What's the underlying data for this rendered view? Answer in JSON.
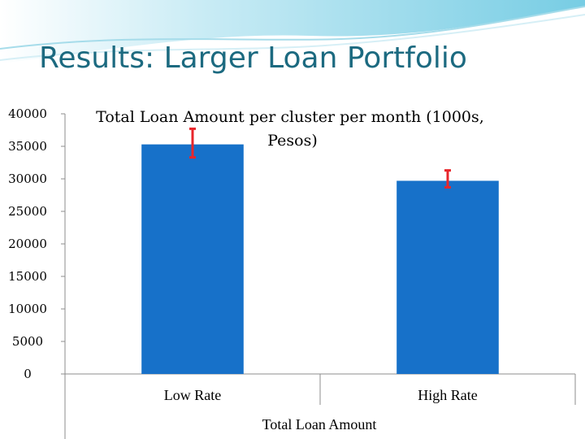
{
  "slide": {
    "title": "Results: Larger Loan Portfolio",
    "colors": {
      "title": "#1c6a80",
      "header_wave": "#7fd0e6",
      "bar": "#1771c9",
      "error_bar": "#e8262b"
    }
  },
  "chart_data": {
    "type": "bar",
    "title_lines": [
      "Total Loan Amount per cluster per month (1000s,",
      "Pesos)"
    ],
    "categories": [
      "Low Rate",
      "High Rate"
    ],
    "series": [
      {
        "values": [
          35300,
          29700
        ],
        "error_low": [
          33300,
          28700
        ],
        "error_high": [
          37700,
          31300
        ]
      }
    ],
    "xlabel": "Total Loan Amount",
    "ylabel": "",
    "ylim": [
      0,
      40000
    ],
    "yticks": [
      "0",
      "5000",
      "10000",
      "15000",
      "20000",
      "25000",
      "30000",
      "35000",
      "40000"
    ],
    "grid": false,
    "legend": "none"
  }
}
